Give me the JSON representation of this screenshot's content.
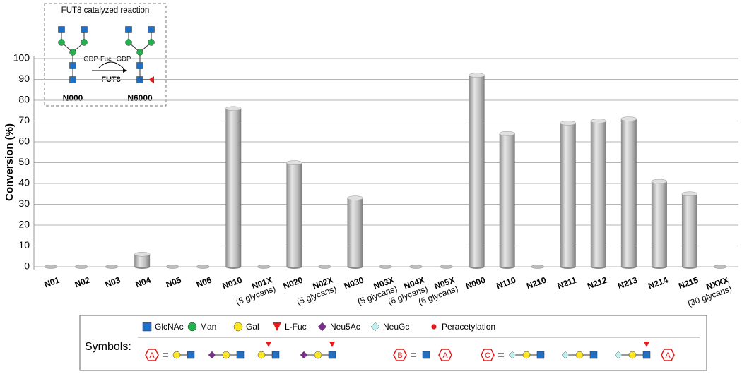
{
  "chart_data": {
    "type": "bar",
    "y_label": "Conversion (%)",
    "categories": [
      "N01",
      "N02",
      "N03",
      "N04",
      "N05",
      "N06",
      "N010",
      "N01X (8 glycans)",
      "N020",
      "N02X (5 glycans)",
      "N030",
      "N03X (5 glycans)",
      "N04X (6 glycans)",
      "N05X (6 glycans)",
      "N000",
      "N110",
      "N210",
      "N211",
      "N212",
      "N213",
      "N214",
      "N215",
      "NXXX (30 glycans)"
    ],
    "values": [
      0,
      0,
      0,
      6,
      0,
      0,
      76,
      0,
      50,
      0,
      33,
      0,
      0,
      0,
      92,
      64,
      0,
      69,
      70,
      71,
      41,
      35,
      0
    ],
    "color": "#bdbdbd",
    "ylim": [
      0,
      100
    ],
    "yticks": [
      0,
      10,
      20,
      30,
      40,
      50,
      60,
      70,
      80,
      90,
      100
    ],
    "grid": true
  },
  "inset": {
    "title": "FUT8 catalyzed reaction",
    "donor": "GDP-Fuc",
    "product": "GDP",
    "enzyme": "FUT8",
    "substrate_label": "N000",
    "product_label": "N6000"
  },
  "legend": {
    "heading": "Symbols:",
    "items": [
      {
        "label": "GlcNAc",
        "shape": "square",
        "color": "#1f6fc5"
      },
      {
        "label": "Man",
        "shape": "circle",
        "color": "#22b14c"
      },
      {
        "label": "Gal",
        "shape": "circle",
        "color": "#fde725"
      },
      {
        "label": "L-Fuc",
        "shape": "triangle",
        "color": "#e31a1c"
      },
      {
        "label": "Neu5Ac",
        "shape": "diamond",
        "color": "#7b2d8e"
      },
      {
        "label": "NeuGc",
        "shape": "diamond",
        "color": "#bff0f0"
      },
      {
        "label": "Peracetylation",
        "shape": "dot",
        "color": "#e31a1c"
      }
    ],
    "defs": [
      "A",
      "B",
      "C"
    ]
  }
}
